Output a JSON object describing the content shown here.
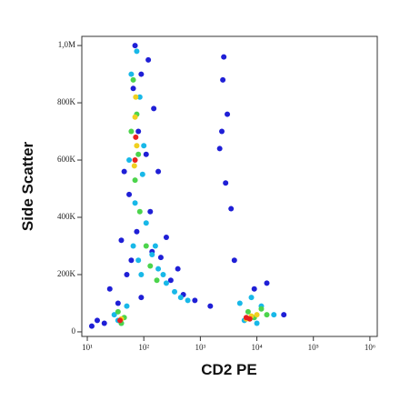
{
  "chart_data": {
    "type": "scatter",
    "x_label": "CD2 PE",
    "y_label": "Side Scatter",
    "x_scale": "log",
    "xlim": [
      8,
      1350000
    ],
    "ylim": [
      -16000,
      1032000
    ],
    "xticks": [
      {
        "value": 10,
        "label": "10¹"
      },
      {
        "value": 100,
        "label": "10²"
      },
      {
        "value": 1000,
        "label": "10³"
      },
      {
        "value": 10000,
        "label": "10⁴"
      },
      {
        "value": 100000,
        "label": "10⁵"
      },
      {
        "value": 1000000,
        "label": "10⁶"
      }
    ],
    "yticks": [
      0,
      {
        "value": 200000,
        "label": "200K"
      },
      {
        "value": 400000,
        "label": "400K"
      },
      {
        "value": 600000,
        "label": "600K"
      },
      {
        "value": 800000,
        "label": "800K"
      },
      {
        "value": 1000000,
        "label": "1,0M"
      }
    ],
    "series": [
      {
        "color": "#1f1fd6",
        "x": [
          25,
          40,
          55,
          80,
          120,
          150,
          45,
          70,
          90,
          110,
          60,
          35,
          130,
          200,
          300,
          500,
          800,
          1500,
          2500,
          3000,
          2200,
          2800,
          3500,
          9000,
          15000,
          30000,
          20,
          15,
          12,
          250,
          400,
          180,
          90,
          75,
          65,
          140,
          4000,
          2600,
          2400,
          50
        ],
        "values": [
          150000,
          320000,
          480000,
          700000,
          950000,
          780000,
          560000,
          1000000,
          900000,
          620000,
          250000,
          100000,
          420000,
          260000,
          180000,
          130000,
          110000,
          90000,
          880000,
          760000,
          640000,
          520000,
          430000,
          150000,
          170000,
          60000,
          30000,
          40000,
          20000,
          330000,
          220000,
          560000,
          120000,
          350000,
          850000,
          280000,
          250000,
          960000,
          700000,
          200000
        ]
      },
      {
        "color": "#18b8e8",
        "x": [
          60,
          75,
          85,
          100,
          70,
          55,
          65,
          90,
          110,
          140,
          180,
          250,
          350,
          600,
          30,
          40,
          50,
          35,
          5000,
          8000,
          12000,
          20000,
          6000,
          10000,
          80,
          95,
          160,
          220,
          450
        ],
        "values": [
          900000,
          980000,
          820000,
          650000,
          450000,
          600000,
          300000,
          200000,
          380000,
          270000,
          220000,
          170000,
          140000,
          110000,
          60000,
          30000,
          90000,
          40000,
          100000,
          120000,
          90000,
          60000,
          40000,
          30000,
          250000,
          550000,
          300000,
          200000,
          120000
        ]
      },
      {
        "color": "#4cd44c",
        "x": [
          65,
          75,
          80,
          70,
          60,
          85,
          45,
          35,
          40,
          130,
          170,
          7000,
          9000,
          12000,
          15000,
          110
        ],
        "values": [
          880000,
          760000,
          620000,
          530000,
          700000,
          420000,
          50000,
          70000,
          30000,
          230000,
          180000,
          70000,
          50000,
          80000,
          60000,
          300000
        ]
      },
      {
        "color": "#f0d020",
        "x": [
          70,
          75,
          68,
          72,
          40,
          8000,
          6500,
          10000
        ],
        "values": [
          750000,
          650000,
          580000,
          820000,
          45000,
          55000,
          45000,
          60000
        ]
      },
      {
        "color": "#e82020",
        "x": [
          72,
          70,
          6500,
          7500,
          38
        ],
        "values": [
          680000,
          600000,
          50000,
          45000,
          40000
        ]
      }
    ]
  }
}
